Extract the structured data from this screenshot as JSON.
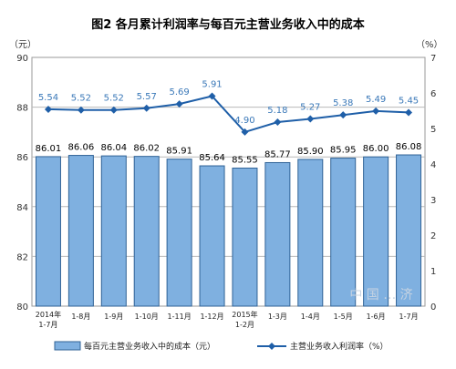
{
  "chart_data": {
    "type": "bar+line",
    "title": "图2  各月累计利润率与每百元主营业务收入中的成本",
    "left_unit": "（元）",
    "right_unit": "（%）",
    "categories": [
      [
        "2014年",
        "1-7月"
      ],
      [
        "1-8月"
      ],
      [
        "1-9月"
      ],
      [
        "1-10月"
      ],
      [
        "1-11月"
      ],
      [
        "1-12月"
      ],
      [
        "2015年",
        "1-2月"
      ],
      [
        "1-3月"
      ],
      [
        "1-4月"
      ],
      [
        "1-5月"
      ],
      [
        "1-6月"
      ],
      [
        "1-7月"
      ]
    ],
    "bar_series": {
      "name": "每百元主营业务收入中的成本（元）",
      "values": [
        86.01,
        86.06,
        86.04,
        86.02,
        85.91,
        85.64,
        85.55,
        85.77,
        85.9,
        85.95,
        86.0,
        86.08
      ],
      "labels": [
        "86.01",
        "86.06",
        "86.04",
        "86.02",
        "85.91",
        "85.64",
        "85.55",
        "85.77",
        "85.90",
        "85.95",
        "86.00",
        "86.08"
      ],
      "axis": "left",
      "color": "#7fb0e0",
      "border": "#2f6296"
    },
    "line_series": {
      "name": "主营业务收入利润率（%）",
      "values": [
        5.54,
        5.52,
        5.52,
        5.57,
        5.69,
        5.91,
        4.9,
        5.18,
        5.27,
        5.38,
        5.49,
        5.45
      ],
      "labels": [
        "5.54",
        "5.52",
        "5.52",
        "5.57",
        "5.69",
        "5.91",
        "4.90",
        "5.18",
        "5.27",
        "5.38",
        "5.49",
        "5.45"
      ],
      "axis": "right",
      "color": "#1f5fa8"
    },
    "left_axis": {
      "ylim": [
        80,
        90
      ],
      "ticks": [
        "80",
        "82",
        "84",
        "86",
        "88",
        "90"
      ]
    },
    "right_axis": {
      "ylim": [
        0,
        7
      ],
      "ticks": [
        "0",
        "1",
        "2",
        "3",
        "4",
        "5",
        "6",
        "7"
      ]
    },
    "grid": true,
    "legend_position": "bottom",
    "watermark": "中 国 … 济"
  }
}
